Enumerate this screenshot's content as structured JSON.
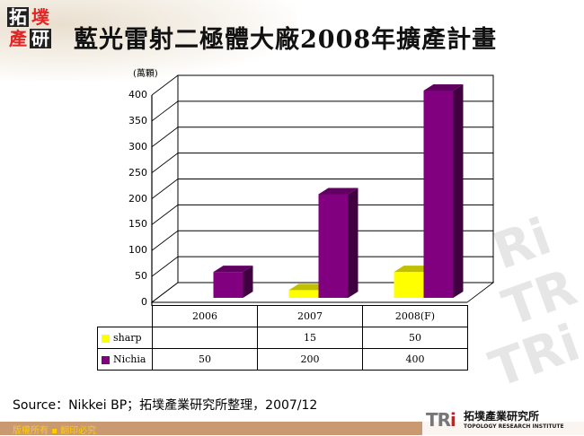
{
  "header": {
    "logo_chars": [
      "拓",
      "墣",
      "產",
      "研"
    ],
    "title": "藍光雷射二極體大廠2008年擴產計畫"
  },
  "chart_data": {
    "type": "bar",
    "title": "藍光雷射二極體大廠2008年擴產計畫",
    "ylabel": "(萬顆)",
    "xlabel": "",
    "ylim": [
      0,
      400
    ],
    "yticks": [
      0,
      50,
      100,
      150,
      200,
      250,
      300,
      350,
      400
    ],
    "categories": [
      "2006",
      "2007",
      "2008(F)"
    ],
    "series": [
      {
        "name": "sharp",
        "color": "#ffff00",
        "values": [
          null,
          15,
          50
        ]
      },
      {
        "name": "Nichia",
        "color": "#800080",
        "values": [
          50,
          200,
          400
        ]
      }
    ],
    "grid": true,
    "style": "3d-column",
    "legend_position": "data-table"
  },
  "table": {
    "headers": [
      "2006",
      "2007",
      "2008(F)"
    ],
    "rows": [
      {
        "label": "sharp",
        "color": "#ffff00",
        "cells": [
          "",
          "15",
          "50"
        ]
      },
      {
        "label": "Nichia",
        "color": "#800080",
        "cells": [
          "50",
          "200",
          "400"
        ]
      }
    ]
  },
  "source": "Source：Nikkei BP；拓墣產業研究所整理，2007/12",
  "footer": {
    "copyright": "版權所有 ▪ 翻印必究",
    "brand_mark": "TRi",
    "brand_cn": "拓墣產業研究所",
    "brand_en": "TOPOLOGY RESEARCH INSTITUTE"
  }
}
